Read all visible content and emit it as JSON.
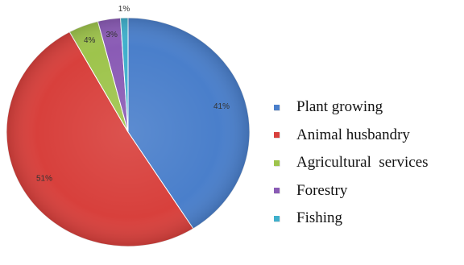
{
  "chart_data": {
    "type": "pie",
    "start_angle_deg": 0,
    "direction": "clockwise",
    "categories": [
      "Plant growing",
      "Animal husbandry",
      "Agricultural  services",
      "Forestry",
      "Fishing"
    ],
    "values": [
      41,
      51,
      4,
      3,
      1
    ],
    "data_labels": [
      "41%",
      "51%",
      "4%",
      "3%",
      "1%"
    ],
    "colors": [
      "#4a7fcb",
      "#d8403c",
      "#9ec44c",
      "#8a5bb5",
      "#3fb0cc"
    ],
    "legend_position": "right",
    "title": ""
  }
}
